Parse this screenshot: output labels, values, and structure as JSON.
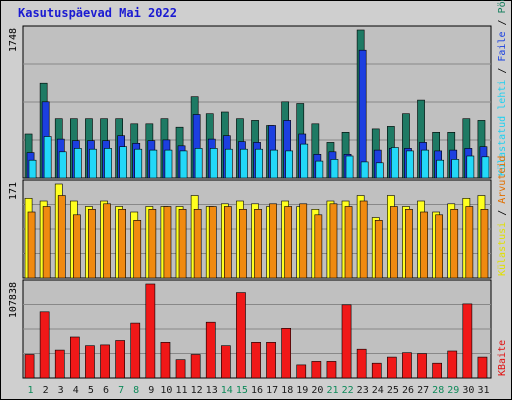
{
  "chart_data": [
    {
      "type": "bar",
      "title": "Kasutuspäevad Mai 2022",
      "ylabel_top": "1748",
      "legend": [
        {
          "label": "Pöördumisi",
          "color": "#1a8060"
        },
        {
          "label": "Faile",
          "color": "#1a40e0"
        },
        {
          "label": "Külastatud lehti",
          "color": "#20d0f0"
        }
      ],
      "ymax": 1748,
      "series": [
        {
          "name": "Pöördumisi",
          "color": "#1e7a64",
          "values": [
            520,
            1120,
            700,
            700,
            700,
            700,
            700,
            640,
            640,
            700,
            600,
            960,
            760,
            780,
            700,
            680,
            620,
            900,
            880,
            640,
            420,
            540,
            1748,
            580,
            610,
            760,
            920,
            540,
            540,
            700,
            680
          ]
        },
        {
          "name": "Faile",
          "color": "#1c3fe0",
          "values": [
            300,
            900,
            460,
            440,
            440,
            440,
            500,
            410,
            440,
            450,
            380,
            750,
            460,
            500,
            430,
            420,
            620,
            680,
            520,
            280,
            310,
            280,
            1510,
            330,
            350,
            350,
            420,
            320,
            330,
            350,
            370
          ]
        },
        {
          "name": "Külastatud lehti",
          "color": "#22d8f8",
          "values": [
            210,
            490,
            310,
            350,
            340,
            350,
            370,
            340,
            330,
            330,
            320,
            350,
            350,
            340,
            340,
            340,
            330,
            320,
            400,
            200,
            220,
            260,
            190,
            180,
            360,
            320,
            330,
            210,
            220,
            260,
            250
          ]
        }
      ]
    },
    {
      "type": "bar",
      "ylabel_top": "171",
      "legend": [
        {
          "label": "Arvuteid",
          "color": "#e07000"
        },
        {
          "label": "Külastusi",
          "color": "#e0e000"
        }
      ],
      "ymax": 171,
      "series": [
        {
          "name": "Külastusi",
          "color": "#ffff20",
          "values": [
            145,
            140,
            171,
            140,
            130,
            140,
            130,
            120,
            130,
            130,
            130,
            150,
            130,
            135,
            140,
            135,
            130,
            140,
            130,
            125,
            140,
            140,
            150,
            110,
            150,
            130,
            140,
            120,
            135,
            145,
            150
          ]
        },
        {
          "name": "Arvuteid",
          "color": "#f08a10",
          "values": [
            120,
            130,
            150,
            115,
            125,
            135,
            125,
            105,
            125,
            130,
            125,
            125,
            130,
            130,
            125,
            125,
            135,
            130,
            135,
            115,
            135,
            130,
            140,
            105,
            130,
            125,
            120,
            115,
            125,
            130,
            125
          ]
        }
      ]
    },
    {
      "type": "bar",
      "ylabel_top": "107838",
      "legend": [
        {
          "label": "KBaite",
          "color": "#e01010"
        }
      ],
      "ymax": 107838,
      "series": [
        {
          "name": "KBaite",
          "color": "#f01818",
          "values": [
            27000,
            76000,
            32000,
            47000,
            37000,
            38000,
            43000,
            63000,
            107838,
            41000,
            21000,
            27000,
            64000,
            37000,
            98000,
            41000,
            41000,
            57000,
            15000,
            19000,
            19000,
            84000,
            33000,
            17000,
            24000,
            29000,
            28000,
            17000,
            31000,
            85000,
            24000
          ]
        }
      ]
    }
  ],
  "x_labels": [
    "1",
    "2",
    "3",
    "4",
    "5",
    "6",
    "7",
    "8",
    "9",
    "10",
    "11",
    "12",
    "13",
    "14",
    "15",
    "16",
    "17",
    "18",
    "19",
    "20",
    "21",
    "22",
    "23",
    "24",
    "25",
    "26",
    "27",
    "28",
    "29",
    "30",
    "31"
  ],
  "weekend_days": [
    1,
    7,
    8,
    14,
    15,
    21,
    22,
    28,
    29
  ],
  "colors": {
    "panel": "#c0c0c0",
    "grid": "#888888",
    "weekday_label": "#1a1a1a",
    "weekend_label": "#0f8a5a",
    "title": "#1a1ad2"
  }
}
